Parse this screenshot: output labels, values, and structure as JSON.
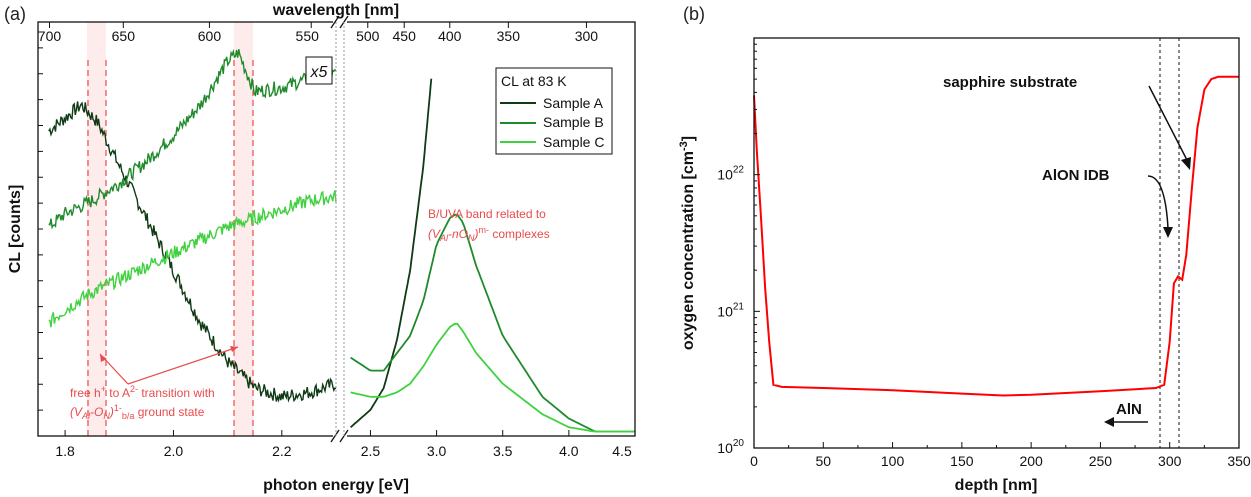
{
  "chart_data": [
    {
      "panel": "(a)",
      "type": "line",
      "xlabel": "photon energy [eV]",
      "ylabel": "CL [counts]",
      "top_axis_label": "wavelength [nm]",
      "x_ticks_left": [
        "1.8",
        "2.0",
        "2.2"
      ],
      "x_ticks_right": [
        "2.5",
        "3.0",
        "3.5",
        "4.0",
        "4.5"
      ],
      "top_ticks_left": [
        "700",
        "650",
        "600",
        "550"
      ],
      "top_ticks_right": [
        "500",
        "450",
        "400",
        "350",
        "300"
      ],
      "xlim_left": [
        1.75,
        2.3
      ],
      "xlim_right": [
        2.3,
        4.5
      ],
      "break_at": 2.3,
      "scale_marker": "x5",
      "legend": {
        "title": "CL at 83 K",
        "entries": [
          "Sample A",
          "Sample B",
          "Sample C"
        ],
        "placement": "top-right"
      },
      "colors": {
        "Sample A": "#0e3a14",
        "Sample B": "#1f8a2b",
        "Sample C": "#3fd13f",
        "annotation": "#e84c4c"
      },
      "series": [
        {
          "name": "Sample A",
          "x_left": [
            1.77,
            1.8,
            1.83,
            1.86,
            1.9,
            1.95,
            2.0,
            2.05,
            2.1,
            2.15,
            2.2,
            2.25,
            2.3
          ],
          "y_left": [
            7.0,
            7.3,
            7.6,
            7.2,
            6.2,
            5.0,
            3.8,
            2.6,
            1.7,
            1.1,
            0.9,
            1.0,
            1.2
          ],
          "x_right": [
            2.35,
            2.5,
            2.6,
            2.7,
            2.8,
            2.9,
            2.96
          ],
          "y_right": [
            0.2,
            0.6,
            1.1,
            2.2,
            3.8,
            6.2,
            8.2
          ]
        },
        {
          "name": "Sample B",
          "x_left": [
            1.77,
            1.8,
            1.85,
            1.9,
            1.95,
            2.0,
            2.05,
            2.1,
            2.12,
            2.15,
            2.2,
            2.25,
            2.3
          ],
          "y_left": [
            4.8,
            5.1,
            5.4,
            5.8,
            6.3,
            6.9,
            7.6,
            8.6,
            8.8,
            7.9,
            8.0,
            8.2,
            8.3
          ],
          "x_right": [
            2.35,
            2.5,
            2.6,
            2.7,
            2.8,
            2.9,
            3.0,
            3.1,
            3.15,
            3.2,
            3.3,
            3.5,
            3.8,
            4.0,
            4.2,
            4.5
          ],
          "y_right": [
            1.8,
            1.5,
            1.5,
            1.9,
            2.3,
            3.1,
            4.4,
            5.0,
            5.1,
            4.9,
            3.9,
            2.3,
            0.9,
            0.4,
            0.1,
            0.1
          ]
        },
        {
          "name": "Sample C",
          "x_left": [
            1.77,
            1.8,
            1.85,
            1.9,
            1.95,
            2.0,
            2.05,
            2.1,
            2.15,
            2.2,
            2.25,
            2.3
          ],
          "y_left": [
            2.6,
            2.9,
            3.3,
            3.6,
            3.9,
            4.2,
            4.5,
            4.8,
            5.0,
            5.2,
            5.4,
            5.5
          ],
          "x_right": [
            2.35,
            2.5,
            2.6,
            2.7,
            2.8,
            2.9,
            3.0,
            3.1,
            3.15,
            3.2,
            3.3,
            3.5,
            3.8,
            4.0,
            4.2,
            4.5
          ],
          "y_right": [
            1.0,
            0.9,
            0.9,
            1.0,
            1.2,
            1.6,
            2.1,
            2.5,
            2.6,
            2.4,
            1.9,
            1.2,
            0.5,
            0.2,
            0.1,
            0.1
          ]
        }
      ],
      "annotations": {
        "band_label_line1": "B/UVA band related to",
        "band_label_line2": "(V",
        "band_sub1": "Al",
        "band_mid": "-nO",
        "band_sub2": "N",
        "band_sup": ")",
        "band_sup2": "m-",
        "band_tail": " complexes",
        "transition_line1_a": "free h",
        "transition_line1_sup1": "+",
        "transition_line1_b": " to A",
        "transition_line1_sup2": "2-",
        "transition_line1_c": " transition with",
        "transition_line2_a": "(V",
        "transition_line2_sub1": "Al",
        "transition_line2_b": "-O",
        "transition_line2_sub2": "N",
        "transition_line2_c": ")",
        "transition_line2_sup": "1-",
        "transition_line2_sub3": "b/a",
        "transition_line2_d": " ground state"
      }
    },
    {
      "panel": "(b)",
      "type": "line",
      "xlabel": "depth [nm]",
      "ylabel_a": "oxygen concentration [cm",
      "ylabel_sup": "-3",
      "ylabel_b": "]",
      "yscale": "log",
      "xlim": [
        0,
        350
      ],
      "ylim": [
        1e+20,
        1e+23
      ],
      "x_ticks": [
        "0",
        "50",
        "100",
        "150",
        "200",
        "250",
        "300",
        "350"
      ],
      "y_ticks": [
        {
          "base": "10",
          "exp": "20"
        },
        {
          "base": "10",
          "exp": "21"
        },
        {
          "base": "10",
          "exp": "22"
        }
      ],
      "series": [
        {
          "name": "",
          "color": "#ff0000",
          "x": [
            0,
            2,
            5,
            8,
            11,
            14,
            20,
            50,
            100,
            150,
            180,
            200,
            250,
            290,
            296,
            300,
            303,
            306,
            309,
            312,
            316,
            320,
            325,
            330,
            335,
            350
          ],
          "y": [
            3.8e+22,
            1.5e+22,
            5e+21,
            1.5e+21,
            6e+20,
            2.9e+20,
            2.8e+20,
            2.75e+20,
            2.65e+20,
            2.5e+20,
            2.42e+20,
            2.45e+20,
            2.6e+20,
            2.75e+20,
            2.9e+20,
            6e+20,
            1.6e+21,
            1.8e+21,
            1.7e+21,
            2.6e+21,
            8e+21,
            2.2e+22,
            4.2e+22,
            5e+22,
            5.2e+22,
            5.2e+22
          ]
        }
      ],
      "vlines": [
        296,
        310
      ],
      "annotations": {
        "sapphire": "sapphire substrate",
        "alon": "AlON IDB",
        "aln": "AlN"
      }
    }
  ],
  "panel_labels": {
    "a": "(a)",
    "b": "(b)"
  }
}
